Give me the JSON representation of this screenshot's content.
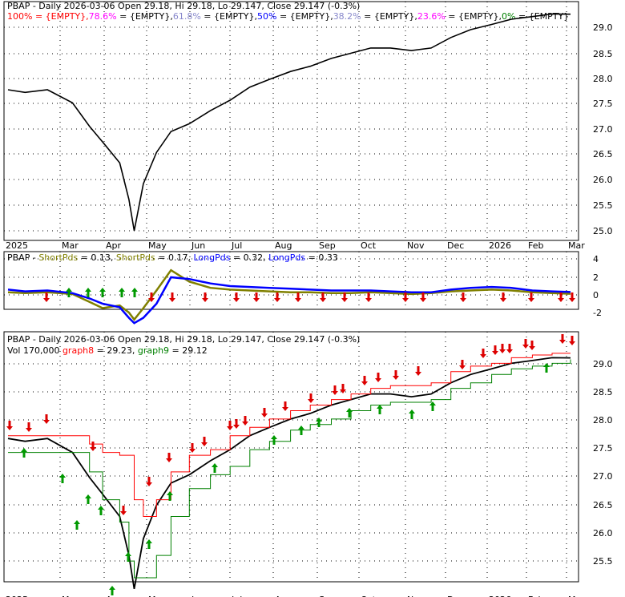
{
  "colors": {
    "price": "#000000",
    "red": "#ff0000",
    "green": "#008000",
    "arrow_down": "#dd0000",
    "arrow_up": "#009900",
    "blue": "#0000ff",
    "olive": "#808000",
    "grid": "#000000",
    "fib_100": "#ff0000",
    "fib_786": "#ff00ff",
    "fib_618": "#8888cc",
    "fib_50": "#0000ff",
    "fib_382": "#8888cc",
    "fib_236": "#ff00ff",
    "fib_0": "#008000"
  },
  "months": [
    "2025",
    "Mar",
    "Apr",
    "May",
    "Jun",
    "Jul",
    "Aug",
    "Sep",
    "Oct",
    "Nov",
    "Dec",
    "2026",
    "Feb",
    "Mar"
  ],
  "panel1": {
    "title": "PBAP - Daily 2026-03-06 Open 29.18, Hi 29.18, Lo 29.147, Close 29.147 (-0.3%)",
    "legend": [
      {
        "text": "100% = {EMPTY},",
        "color": "#ff0000"
      },
      {
        "text": "78.6%",
        "color": "#ff00ff"
      },
      {
        "text": " = {EMPTY},",
        "color": "#000000"
      },
      {
        "text": "61.8%",
        "color": "#8888cc"
      },
      {
        "text": " = {EMPTY},",
        "color": "#000000"
      },
      {
        "text": "50%",
        "color": "#0000ff"
      },
      {
        "text": " = {EMPTY},",
        "color": "#000000"
      },
      {
        "text": "38.2%",
        "color": "#8888cc"
      },
      {
        "text": " = {EMPTY},",
        "color": "#000000"
      },
      {
        "text": "23.6%",
        "color": "#ff00ff"
      },
      {
        "text": " = {EMPTY},",
        "color": "#000000"
      },
      {
        "text": "0%",
        "color": "#008000"
      },
      {
        "text": " = {EMPTY}",
        "color": "#000000"
      }
    ],
    "yticks": [
      "29.0",
      "28.5",
      "28.0",
      "27.5",
      "27.0",
      "26.5",
      "26.0",
      "25.5",
      "25.0"
    ]
  },
  "panel2": {
    "title": "PBAP - ShortPds = 0.13, ShortPds = 0.17, LongPds = 0.32, LongPds = 0.33",
    "legend": [
      {
        "text": "PBAP - ",
        "color": "#000000"
      },
      {
        "text": "ShortPds",
        "color": "#808000"
      },
      {
        "text": " = 0.13, ",
        "color": "#000000"
      },
      {
        "text": "ShortPds",
        "color": "#808000"
      },
      {
        "text": " = 0.17, ",
        "color": "#000000"
      },
      {
        "text": "LongPds",
        "color": "#0000ff"
      },
      {
        "text": " = 0.32, ",
        "color": "#000000"
      },
      {
        "text": "LongPds",
        "color": "#0000ff"
      },
      {
        "text": " = 0.33",
        "color": "#000000"
      }
    ],
    "yticks": [
      "4",
      "2",
      "0",
      "-2"
    ]
  },
  "panel3": {
    "title": "PBAP - Daily 2026-03-06 Open 29.18, Hi 29.18, Lo 29.147, Close 29.147 (-0.3%)",
    "legend": [
      {
        "text": "Vol 170,000 ",
        "color": "#000000"
      },
      {
        "text": "graph8",
        "color": "#ff0000"
      },
      {
        "text": " = 29.23, ",
        "color": "#000000"
      },
      {
        "text": "graph9",
        "color": "#008000"
      },
      {
        "text": " = 29.12",
        "color": "#000000"
      }
    ],
    "yticks": [
      "29.0",
      "28.5",
      "28.0",
      "27.5",
      "27.0",
      "26.5",
      "26.0",
      "25.5"
    ]
  },
  "chart_data": {
    "type": "line",
    "title": "PBAP - Daily 2026-03-06 Open 29.18, Hi 29.18, Lo 29.147, Close 29.147 (-0.3%)",
    "x": [
      "2025-01-02",
      "2025-01-15",
      "2025-02-01",
      "2025-02-20",
      "2025-03-05",
      "2025-03-15",
      "2025-03-28",
      "2025-04-04",
      "2025-04-08",
      "2025-04-15",
      "2025-04-25",
      "2025-05-06",
      "2025-05-20",
      "2025-06-05",
      "2025-06-20",
      "2025-07-05",
      "2025-07-20",
      "2025-08-05",
      "2025-08-20",
      "2025-09-05",
      "2025-09-20",
      "2025-10-05",
      "2025-10-20",
      "2025-11-05",
      "2025-11-20",
      "2025-12-05",
      "2025-12-20",
      "2026-01-05",
      "2026-01-20",
      "2026-02-05",
      "2026-02-20",
      "2026-03-06"
    ],
    "series": [
      {
        "values": [
          27.7,
          27.65,
          27.7,
          27.45,
          27.0,
          26.7,
          26.3,
          25.6,
          25.0,
          25.9,
          26.5,
          26.9,
          27.05,
          27.3,
          27.5,
          27.75,
          27.9,
          28.05,
          28.15,
          28.3,
          28.4,
          28.5,
          28.5,
          28.45,
          28.5,
          28.7,
          28.85,
          28.95,
          29.05,
          29.1,
          29.15,
          29.147
        ]
      },
      {
        "values": [
          27.75,
          27.75,
          27.75,
          27.75,
          27.6,
          27.45,
          27.4,
          27.4,
          26.6,
          26.3,
          26.6,
          27.1,
          27.4,
          27.5,
          27.75,
          27.9,
          28.05,
          28.2,
          28.3,
          28.4,
          28.5,
          28.6,
          28.65,
          28.65,
          28.7,
          28.9,
          29.0,
          29.05,
          29.15,
          29.2,
          29.23,
          29.23
        ]
      },
      {
        "values": [
          27.45,
          27.45,
          27.45,
          27.45,
          27.1,
          26.6,
          26.2,
          25.5,
          25.2,
          25.2,
          25.6,
          26.3,
          26.8,
          27.05,
          27.2,
          27.5,
          27.65,
          27.85,
          27.95,
          28.05,
          28.2,
          28.3,
          28.35,
          28.35,
          28.4,
          28.6,
          28.7,
          28.85,
          28.95,
          29.0,
          29.05,
          29.12
        ]
      }
    ],
    "ylim": [
      25.3,
      29.4
    ],
    "oscillator": {
      "ylim": [
        -4,
        4
      ],
      "series": [
        {
          "values": [
            0.3,
            0.2,
            0.3,
            0.1,
            -0.8,
            -1.5,
            -1.2,
            -2.0,
            -2.8,
            -1.5,
            0.5,
            2.8,
            1.5,
            0.8,
            0.6,
            0.5,
            0.4,
            0.3,
            0.3,
            0.2,
            0.2,
            0.3,
            0.2,
            0.1,
            0.2,
            0.4,
            0.5,
            0.6,
            0.5,
            0.3,
            0.2,
            0.13
          ]
        },
        {
          "values": [
            0.6,
            0.4,
            0.5,
            0.2,
            -0.4,
            -1.0,
            -1.4,
            -2.6,
            -3.2,
            -2.6,
            -1.0,
            2.0,
            1.8,
            1.3,
            1.0,
            0.9,
            0.8,
            0.7,
            0.6,
            0.5,
            0.5,
            0.5,
            0.4,
            0.3,
            0.3,
            0.6,
            0.8,
            0.9,
            0.8,
            0.5,
            0.4,
            0.33
          ]
        }
      ]
    }
  }
}
